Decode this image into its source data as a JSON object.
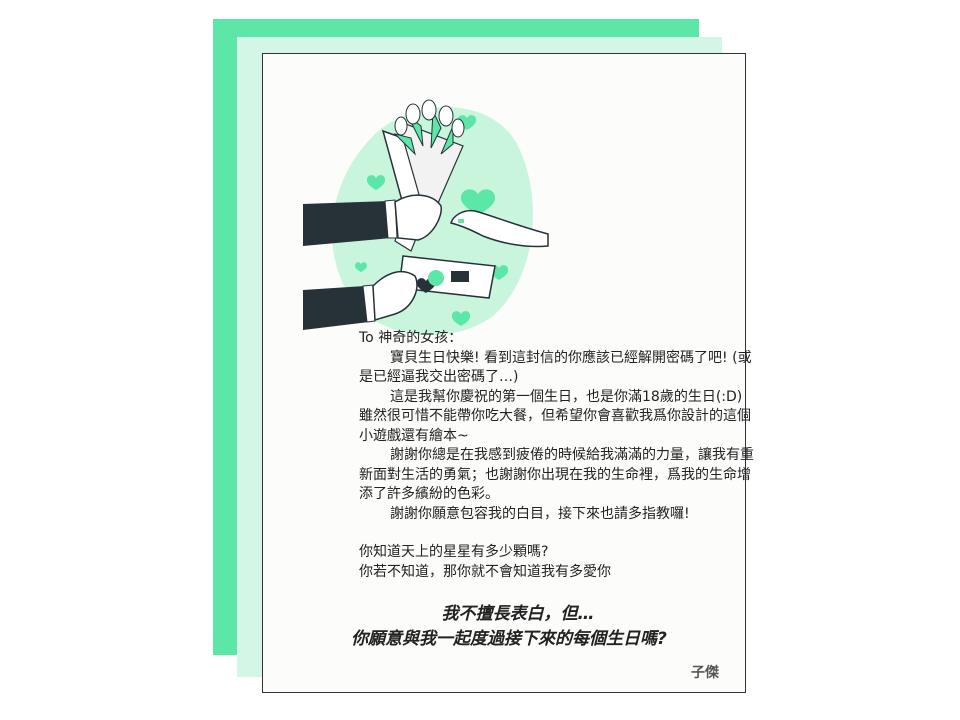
{
  "letter": {
    "greeting": "To 神奇的女孩：",
    "p1": "寶貝生日快樂! 看到這封信的你應該已經解開密碼了吧! (或是已經逼我交出密碼了…)",
    "p2": "這是我幫你慶祝的第一個生日，也是你滿18歲的生日(:D) 雖然很可惜不能帶你吃大餐，但希望你會喜歡我爲你設計的這個小遊戲還有繪本~",
    "p3": "謝謝你總是在我感到疲倦的時候給我滿滿的力量，讓我有重新面對生活的勇氣；也謝謝你出現在我的生命裡，爲我的生命增添了許多繽紛的色彩。",
    "p4": "謝謝你願意包容我的白目，接下來也請多指教囉!",
    "q_line1": "你知道天上的星星有多少顆嗎?",
    "q_line2": "你若不知道，那你就不會知道我有多愛你"
  },
  "proposal": {
    "line1": "我不擅長表白，但…",
    "line2": "你願意與我一起度過接下來的每個生日嗎?"
  },
  "signature": "子傑",
  "colors": {
    "accent": "#5ce6a8",
    "accent_light": "#d4f6e6",
    "sleeve": "#263238"
  },
  "illustration": "bouquet-and-gift-card-hands"
}
